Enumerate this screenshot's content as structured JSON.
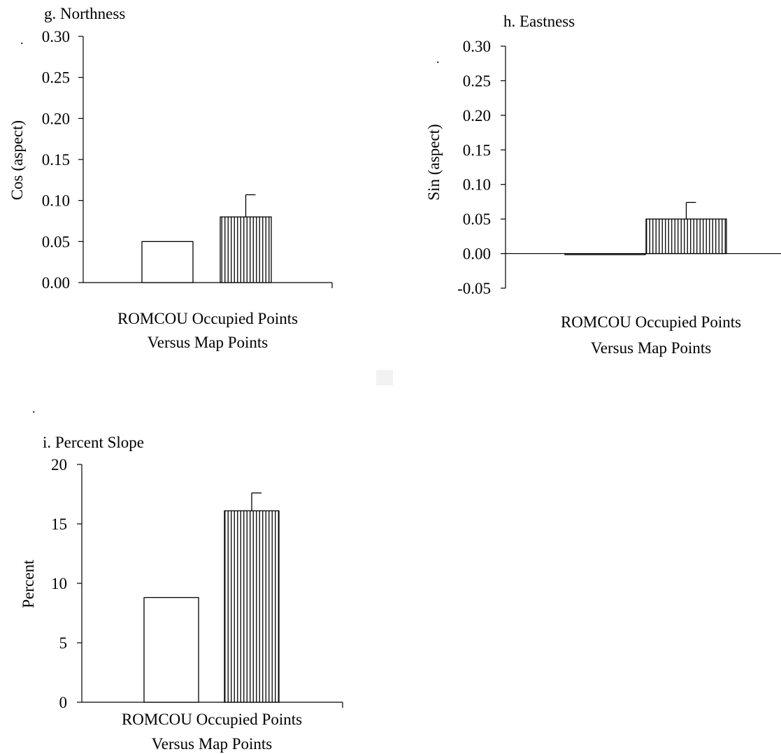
{
  "bar_colors": {
    "map_points": "#ffffff",
    "occupied_points": "#000000"
  },
  "decorations": {
    "dot": "."
  },
  "chart_data": [
    {
      "id": "g",
      "type": "bar",
      "title": "g. Northness",
      "ylabel": "Cos (aspect)",
      "xlabel_lines": [
        "ROMCOU Occupied Points",
        "Versus Map Points"
      ],
      "ylim": [
        0,
        0.3
      ],
      "yticks": [
        0,
        0.05,
        0.1,
        0.15,
        0.2,
        0.25,
        0.3
      ],
      "ytick_labels": [
        "0.00",
        "0.05",
        "0.10",
        "0.15",
        "0.20",
        "0.25",
        "0.30"
      ],
      "bars": [
        {
          "pattern": "open",
          "value": 0.05
        },
        {
          "pattern": "hatched",
          "value": 0.08,
          "error": 0.027
        }
      ]
    },
    {
      "id": "h",
      "type": "bar",
      "title": "h. Eastness",
      "ylabel": "Sin (aspect)",
      "xlabel_lines": [
        "ROMCOU Occupied Points",
        "Versus Map Points"
      ],
      "ylim": [
        -0.05,
        0.3
      ],
      "yticks": [
        -0.05,
        0,
        0.05,
        0.1,
        0.15,
        0.2,
        0.25,
        0.3
      ],
      "ytick_labels": [
        "-0.05",
        "0.00",
        "0.05",
        "0.10",
        "0.15",
        "0.20",
        "0.25",
        "0.30"
      ],
      "bars": [
        {
          "pattern": "open",
          "value": -0.001
        },
        {
          "pattern": "hatched",
          "value": 0.05,
          "error": 0.024
        }
      ]
    },
    {
      "id": "i",
      "type": "bar",
      "title": "i. Percent Slope",
      "ylabel": "Percent",
      "xlabel_lines": [
        "ROMCOU Occupied Points",
        "Versus Map Points"
      ],
      "ylim": [
        0,
        20
      ],
      "yticks": [
        0,
        5,
        10,
        15,
        20
      ],
      "ytick_labels": [
        "0",
        "5",
        "10",
        "15",
        "20"
      ],
      "bars": [
        {
          "pattern": "open",
          "value": 8.8
        },
        {
          "pattern": "hatched",
          "value": 16.1,
          "error": 1.5
        }
      ]
    }
  ]
}
